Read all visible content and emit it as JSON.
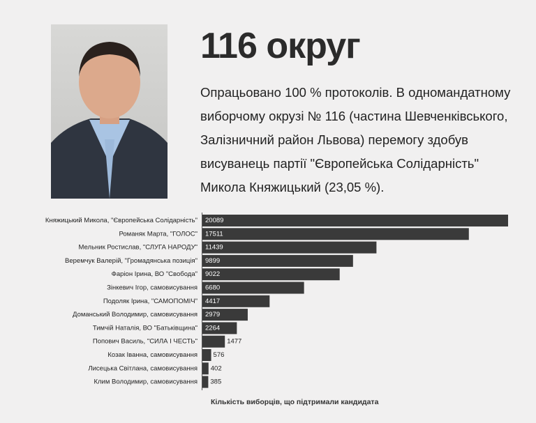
{
  "heading": "116 округ",
  "description": "Опрацьовано 100 % протоколів. В одномандатному виборчому окрузі № 116 (частина Шевченківського, Залізничний район Львова) перемогу здобув висуванець партії \"Європейська Солідарність\" Микола Княжицький (23,05 %).",
  "chart_data": {
    "type": "bar",
    "orientation": "horizontal",
    "x_label": "Кількість виборців, що підтримали кандидата",
    "categories": [
      "Княжицький Микола, \"Європейська Солідарність\"",
      "Романяк Марта, \"ГОЛОС\"",
      "Мельник Ростислав, \"СЛУГА НАРОДУ\"",
      "Веремчук Валерій, \"Громадянська позиція\"",
      "Фаріон Ірина, ВО \"Свобода\"",
      "Зінкевич Ігор, самовисування",
      "Подоляк Ірина, \"САМОПОМІЧ\"",
      "Доманський Володимир, самовисування",
      "Тимчій Наталія, ВО \"Батьківщина\"",
      "Попович Василь, \"СИЛА І ЧЕСТЬ\"",
      "Козак Іванна, самовисування",
      "Лисецька Світлана, самовисування",
      "Клим Володимир, самовисування"
    ],
    "values": [
      20089,
      17511,
      11439,
      9899,
      9022,
      6680,
      4417,
      2979,
      2264,
      1477,
      576,
      402,
      385
    ],
    "color": "#3a3a3a"
  }
}
